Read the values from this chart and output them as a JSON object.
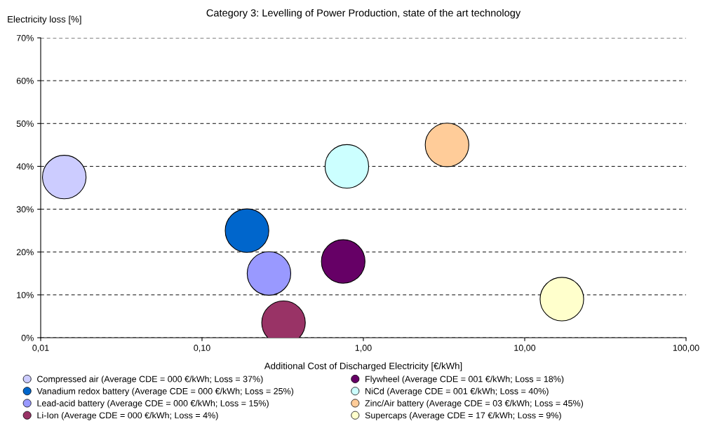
{
  "chart_data": {
    "type": "bubble",
    "title": "Category 3: Levelling of Power Production, state of the art technology",
    "xlabel": "Additional Cost of Discharged Electricity [€/kWh]",
    "ylabel": "Electricity loss [%]",
    "log": "x",
    "grid": "y",
    "legend": "bottom",
    "marker": "circle",
    "xlim": [
      0.01,
      100
    ],
    "xticks": [
      {
        "value": 0.01,
        "label": "0,01"
      },
      {
        "value": 0.1,
        "label": "0,10"
      },
      {
        "value": 1,
        "label": "1,00"
      },
      {
        "value": 10,
        "label": "10,00"
      },
      {
        "value": 100,
        "label": "100,00"
      }
    ],
    "ylim": [
      0,
      70
    ],
    "yticks": [
      {
        "value": 0,
        "label": "0%"
      },
      {
        "value": 10,
        "label": "10%"
      },
      {
        "value": 20,
        "label": "20%"
      },
      {
        "value": 30,
        "label": "30%"
      },
      {
        "value": 40,
        "label": "40%"
      },
      {
        "value": 50,
        "label": "50%"
      },
      {
        "value": 60,
        "label": "60%"
      },
      {
        "value": 70,
        "label": "70%"
      }
    ],
    "series": [
      {
        "name": "Compressed air (Average CDE = 000 €/kWh; Loss = 37%)",
        "color": "#ccccff",
        "x": [
          0.014
        ],
        "values": [
          37.5
        ],
        "sizes": [
          1
        ]
      },
      {
        "name": "Vanadium redox battery (Average CDE = 000 €/kWh; Loss = 25%)",
        "color": "#0066cc",
        "x": [
          0.19
        ],
        "values": [
          25
        ],
        "sizes": [
          1
        ]
      },
      {
        "name": "Lead-acid battery (Average CDE = 000 €/kWh; Loss = 15%)",
        "color": "#9999ff",
        "x": [
          0.26
        ],
        "values": [
          15
        ],
        "sizes": [
          1
        ]
      },
      {
        "name": "Li-Ion (Average CDE = 000 €/kWh; Loss = 4%)",
        "color": "#993366",
        "x": [
          0.32
        ],
        "values": [
          3.5
        ],
        "sizes": [
          1
        ]
      },
      {
        "name": "Flywheel (Average CDE = 001 €/kWh; Loss = 18%)",
        "color": "#660066",
        "x": [
          0.75
        ],
        "values": [
          17.8
        ],
        "sizes": [
          1
        ]
      },
      {
        "name": "NiCd (Average CDE = 001 €/kWh; Loss = 40%)",
        "color": "#ccffff",
        "x": [
          0.79
        ],
        "values": [
          40
        ],
        "sizes": [
          1
        ]
      },
      {
        "name": "Zinc/Air battery (Average CDE = 03 €/kWh; Loss = 45%)",
        "color": "#ffcc99",
        "x": [
          3.3
        ],
        "values": [
          45
        ],
        "sizes": [
          1
        ]
      },
      {
        "name": "Supercaps (Average CDE = 17 €/kWh; Loss = 9%)",
        "color": "#ffffcc",
        "x": [
          17
        ],
        "values": [
          9
        ],
        "sizes": [
          1
        ]
      }
    ]
  }
}
